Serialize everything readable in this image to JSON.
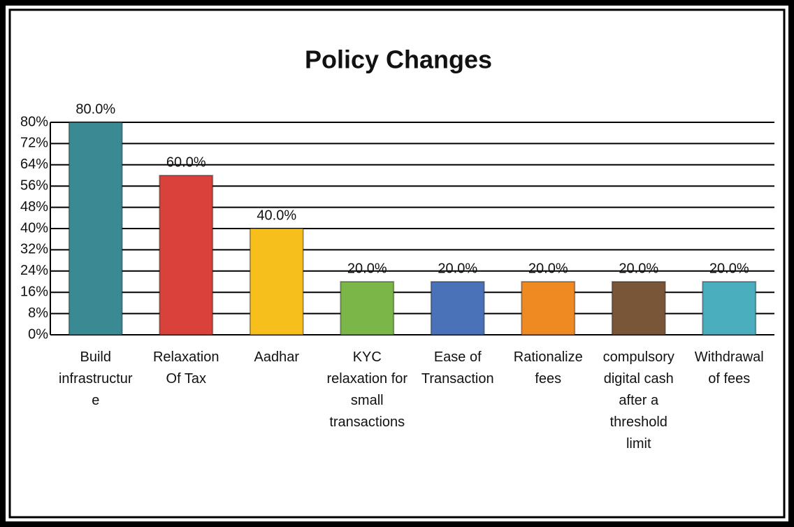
{
  "chart_data": {
    "type": "bar",
    "title": "Policy Changes",
    "categories": [
      "Build infrastructure",
      "Relaxation Of Tax",
      "Aadhar",
      "KYC relaxation for small transactions",
      "Ease of Transaction",
      "Rationalize fees",
      "compulsory digital cash after a threshold limit",
      "Withdrawal of fees"
    ],
    "values": [
      80,
      60,
      40,
      20,
      20,
      20,
      20,
      20
    ],
    "value_labels": [
      "80.0%",
      "60.0%",
      "40.0%",
      "20.0%",
      "20.0%",
      "20.0%",
      "20.0%",
      "20.0%"
    ],
    "colors": [
      "#3a8a94",
      "#d9423a",
      "#f7bf1c",
      "#7ab648",
      "#4a72b8",
      "#ef8a22",
      "#7a5638",
      "#4aaebf"
    ],
    "ylim": [
      0,
      80
    ],
    "yticks": [
      {
        "value": 0,
        "label": "0%"
      },
      {
        "value": 8,
        "label": "8%"
      },
      {
        "value": 16,
        "label": "16%"
      },
      {
        "value": 24,
        "label": "24%"
      },
      {
        "value": 32,
        "label": "32%"
      },
      {
        "value": 40,
        "label": "40%"
      },
      {
        "value": 48,
        "label": "48%"
      },
      {
        "value": 56,
        "label": "56%"
      },
      {
        "value": 64,
        "label": "64%"
      },
      {
        "value": 72,
        "label": "72%"
      },
      {
        "value": 80,
        "label": "80%"
      }
    ],
    "grid": true
  }
}
